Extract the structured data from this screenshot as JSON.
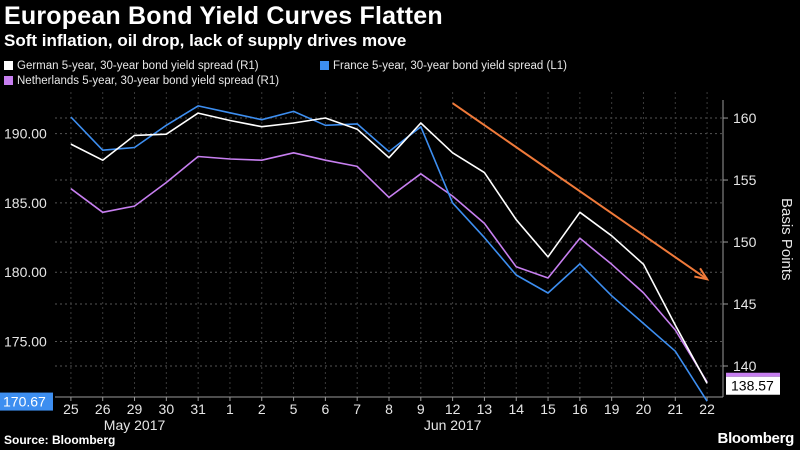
{
  "title": "European Bond Yield Curves Flatten",
  "subtitle": "Soft inflation, oil drop, lack of supply drives move",
  "source": "Source: Bloomberg",
  "brand": "Bloomberg",
  "legend": [
    {
      "label": "German 5-year, 30-year bond yield spread (R1)",
      "color": "#ffffff"
    },
    {
      "label": "France 5-year, 30-year bond yield spread (L1)",
      "color": "#3d8ef0"
    },
    {
      "label": "Netherlands 5-year, 30-year bond yield spread (R1)",
      "color": "#c77ff0"
    }
  ],
  "chart_data": {
    "type": "line",
    "title": "European Bond Yield Curves Flatten",
    "subtitle": "Soft inflation, oil drop, lack of supply drives move",
    "categories": [
      "25",
      "26",
      "29",
      "30",
      "31",
      "1",
      "2",
      "5",
      "6",
      "7",
      "8",
      "9",
      "12",
      "13",
      "14",
      "15",
      "16",
      "19",
      "20",
      "21",
      "22"
    ],
    "month_labels": [
      {
        "label": "May 2017",
        "at": "29"
      },
      {
        "label": "Jun 2017",
        "at": "12"
      }
    ],
    "y_left": {
      "ticks": [
        175,
        180,
        185,
        190
      ],
      "tick_labels": [
        "175.00",
        "180.00",
        "185.00",
        "190.00"
      ],
      "range": [
        171,
        193
      ]
    },
    "y_right": {
      "ticks": [
        140,
        145,
        150,
        155,
        160
      ],
      "tick_labels": [
        "140",
        "145",
        "150",
        "155",
        "160"
      ],
      "range": [
        137.5,
        162.1
      ],
      "label": "Basis Points"
    },
    "series": [
      {
        "name": "German 5-year, 30-year bond yield spread (R1)",
        "axis": "right",
        "color": "#ffffff",
        "values": [
          157.9,
          156.6,
          158.6,
          158.7,
          160.4,
          159.8,
          159.3,
          159.6,
          160.0,
          159.1,
          156.8,
          159.6,
          157.2,
          155.6,
          151.8,
          148.8,
          152.4,
          150.5,
          148.2,
          143.3,
          138.6
        ]
      },
      {
        "name": "France 5-year, 30-year bond yield spread (L1)",
        "axis": "left",
        "color": "#3d8ef0",
        "values": [
          191.2,
          188.8,
          189.0,
          190.6,
          192.0,
          191.5,
          191.0,
          191.6,
          190.6,
          190.7,
          188.7,
          190.5,
          185.0,
          182.5,
          179.8,
          178.5,
          180.6,
          178.3,
          176.3,
          174.3,
          170.7
        ]
      },
      {
        "name": "Netherlands 5-year, 30-year bond yield spread (R1)",
        "axis": "right",
        "color": "#c77ff0",
        "values": [
          154.3,
          152.4,
          152.9,
          154.8,
          156.9,
          156.7,
          156.6,
          157.2,
          156.6,
          156.1,
          153.6,
          155.5,
          153.7,
          151.5,
          148.0,
          147.1,
          150.3,
          148.2,
          145.9,
          142.9,
          138.7
        ]
      }
    ],
    "annotation": {
      "type": "arrow",
      "color": "#f07a3a",
      "from": {
        "x": "12",
        "y_right": 161.2
      },
      "to": {
        "x": "22",
        "y_right": 147.0
      }
    },
    "last_value_labels": [
      {
        "value": "170.67",
        "axis": "left",
        "color": "#3d8ef0"
      },
      {
        "value": "138.57",
        "axis": "right",
        "color": "#ffffff"
      }
    ],
    "ylabel_right": "Basis Points",
    "grid": true
  }
}
